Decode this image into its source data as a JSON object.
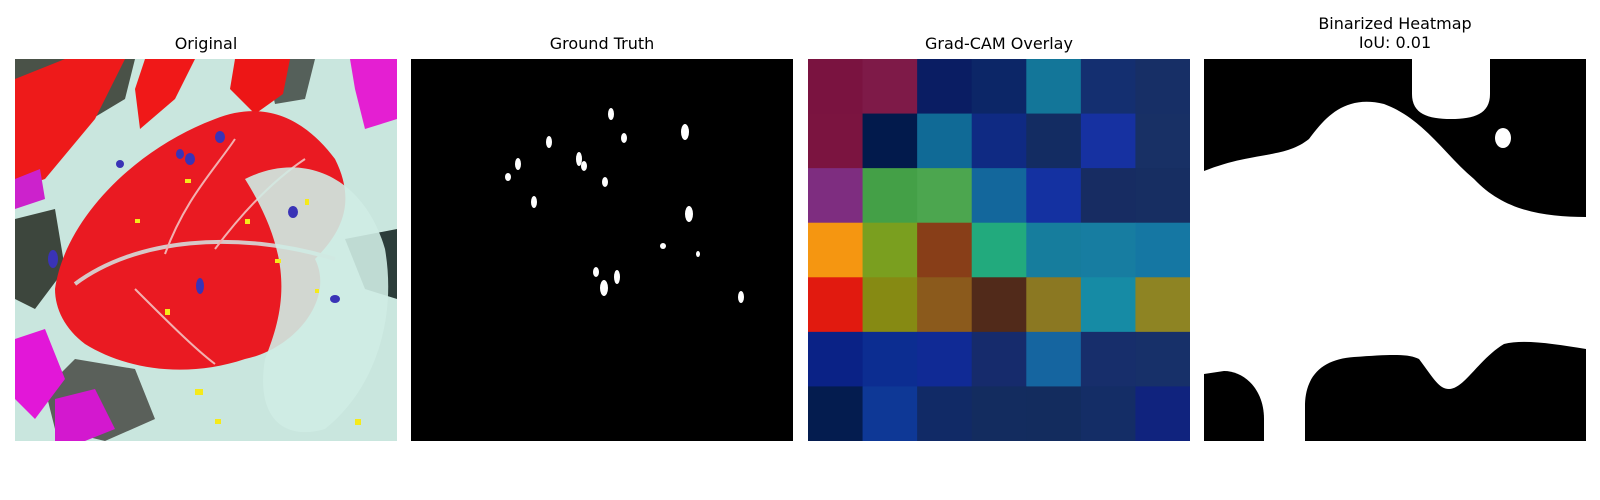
{
  "panels": {
    "original": {
      "title": "Original"
    },
    "ground_truth": {
      "title": "Ground Truth"
    },
    "gradcam": {
      "title": "Grad-CAM Overlay",
      "grid_colors": [
        [
          "#7a1340",
          "#7e1a48",
          "#0a1d63",
          "#0c2667",
          "#137699",
          "#142f70",
          "#172f66"
        ],
        [
          "#7b1440",
          "#021a4c",
          "#106a96",
          "#0f2a83",
          "#132c62",
          "#1631a1",
          "#183065"
        ],
        [
          "#7e2d80",
          "#44a047",
          "#4ca64f",
          "#13679c",
          "#1431a1",
          "#172c62",
          "#172e62"
        ],
        [
          "#f59611",
          "#7a9f1f",
          "#883e18",
          "#22aa7d",
          "#167d9d",
          "#177da1",
          "#1577a3"
        ],
        [
          "#e11a0f",
          "#868a13",
          "#8b5a1c",
          "#512a1a",
          "#8b7822",
          "#168ba5",
          "#8e8423"
        ],
        [
          "#0a2286",
          "#0c2d91",
          "#102a95",
          "#162b6c",
          "#1565a0",
          "#172e6b",
          "#173069"
        ],
        [
          "#041c4f",
          "#0e3896",
          "#112a66",
          "#132c5f",
          "#132c5e",
          "#142d66",
          "#10237e"
        ]
      ]
    },
    "binarized": {
      "title": "Binarized Heatmap\nIoU: 0.01"
    }
  }
}
